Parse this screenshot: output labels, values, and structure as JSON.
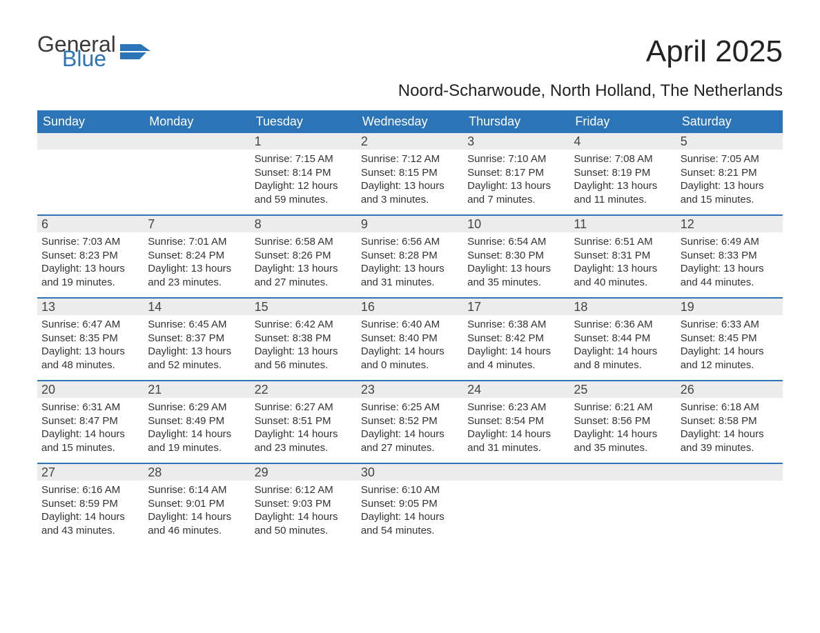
{
  "logo": {
    "line1": "General",
    "line2": "Blue",
    "color1": "#3a3a3a",
    "color2": "#2b74b8",
    "icon_color": "#2b74b8"
  },
  "header": {
    "month_title": "April 2025",
    "location": "Noord-Scharwoude, North Holland, The Netherlands"
  },
  "style": {
    "header_bg": "#2b74b8",
    "header_fg": "#ffffff",
    "daynum_bg": "#ececec",
    "daynum_fg": "#444444",
    "body_fg": "#333333",
    "week_border": "#2b74b8",
    "page_bg": "#ffffff",
    "month_title_fontsize": 44,
    "location_fontsize": 24,
    "weekday_fontsize": 18,
    "body_fontsize": 15
  },
  "weekdays": [
    "Sunday",
    "Monday",
    "Tuesday",
    "Wednesday",
    "Thursday",
    "Friday",
    "Saturday"
  ],
  "weeks": [
    [
      {
        "day": "",
        "sunrise": "",
        "sunset": "",
        "daylight": ""
      },
      {
        "day": "",
        "sunrise": "",
        "sunset": "",
        "daylight": ""
      },
      {
        "day": "1",
        "sunrise": "Sunrise: 7:15 AM",
        "sunset": "Sunset: 8:14 PM",
        "daylight": "Daylight: 12 hours and 59 minutes."
      },
      {
        "day": "2",
        "sunrise": "Sunrise: 7:12 AM",
        "sunset": "Sunset: 8:15 PM",
        "daylight": "Daylight: 13 hours and 3 minutes."
      },
      {
        "day": "3",
        "sunrise": "Sunrise: 7:10 AM",
        "sunset": "Sunset: 8:17 PM",
        "daylight": "Daylight: 13 hours and 7 minutes."
      },
      {
        "day": "4",
        "sunrise": "Sunrise: 7:08 AM",
        "sunset": "Sunset: 8:19 PM",
        "daylight": "Daylight: 13 hours and 11 minutes."
      },
      {
        "day": "5",
        "sunrise": "Sunrise: 7:05 AM",
        "sunset": "Sunset: 8:21 PM",
        "daylight": "Daylight: 13 hours and 15 minutes."
      }
    ],
    [
      {
        "day": "6",
        "sunrise": "Sunrise: 7:03 AM",
        "sunset": "Sunset: 8:23 PM",
        "daylight": "Daylight: 13 hours and 19 minutes."
      },
      {
        "day": "7",
        "sunrise": "Sunrise: 7:01 AM",
        "sunset": "Sunset: 8:24 PM",
        "daylight": "Daylight: 13 hours and 23 minutes."
      },
      {
        "day": "8",
        "sunrise": "Sunrise: 6:58 AM",
        "sunset": "Sunset: 8:26 PM",
        "daylight": "Daylight: 13 hours and 27 minutes."
      },
      {
        "day": "9",
        "sunrise": "Sunrise: 6:56 AM",
        "sunset": "Sunset: 8:28 PM",
        "daylight": "Daylight: 13 hours and 31 minutes."
      },
      {
        "day": "10",
        "sunrise": "Sunrise: 6:54 AM",
        "sunset": "Sunset: 8:30 PM",
        "daylight": "Daylight: 13 hours and 35 minutes."
      },
      {
        "day": "11",
        "sunrise": "Sunrise: 6:51 AM",
        "sunset": "Sunset: 8:31 PM",
        "daylight": "Daylight: 13 hours and 40 minutes."
      },
      {
        "day": "12",
        "sunrise": "Sunrise: 6:49 AM",
        "sunset": "Sunset: 8:33 PM",
        "daylight": "Daylight: 13 hours and 44 minutes."
      }
    ],
    [
      {
        "day": "13",
        "sunrise": "Sunrise: 6:47 AM",
        "sunset": "Sunset: 8:35 PM",
        "daylight": "Daylight: 13 hours and 48 minutes."
      },
      {
        "day": "14",
        "sunrise": "Sunrise: 6:45 AM",
        "sunset": "Sunset: 8:37 PM",
        "daylight": "Daylight: 13 hours and 52 minutes."
      },
      {
        "day": "15",
        "sunrise": "Sunrise: 6:42 AM",
        "sunset": "Sunset: 8:38 PM",
        "daylight": "Daylight: 13 hours and 56 minutes."
      },
      {
        "day": "16",
        "sunrise": "Sunrise: 6:40 AM",
        "sunset": "Sunset: 8:40 PM",
        "daylight": "Daylight: 14 hours and 0 minutes."
      },
      {
        "day": "17",
        "sunrise": "Sunrise: 6:38 AM",
        "sunset": "Sunset: 8:42 PM",
        "daylight": "Daylight: 14 hours and 4 minutes."
      },
      {
        "day": "18",
        "sunrise": "Sunrise: 6:36 AM",
        "sunset": "Sunset: 8:44 PM",
        "daylight": "Daylight: 14 hours and 8 minutes."
      },
      {
        "day": "19",
        "sunrise": "Sunrise: 6:33 AM",
        "sunset": "Sunset: 8:45 PM",
        "daylight": "Daylight: 14 hours and 12 minutes."
      }
    ],
    [
      {
        "day": "20",
        "sunrise": "Sunrise: 6:31 AM",
        "sunset": "Sunset: 8:47 PM",
        "daylight": "Daylight: 14 hours and 15 minutes."
      },
      {
        "day": "21",
        "sunrise": "Sunrise: 6:29 AM",
        "sunset": "Sunset: 8:49 PM",
        "daylight": "Daylight: 14 hours and 19 minutes."
      },
      {
        "day": "22",
        "sunrise": "Sunrise: 6:27 AM",
        "sunset": "Sunset: 8:51 PM",
        "daylight": "Daylight: 14 hours and 23 minutes."
      },
      {
        "day": "23",
        "sunrise": "Sunrise: 6:25 AM",
        "sunset": "Sunset: 8:52 PM",
        "daylight": "Daylight: 14 hours and 27 minutes."
      },
      {
        "day": "24",
        "sunrise": "Sunrise: 6:23 AM",
        "sunset": "Sunset: 8:54 PM",
        "daylight": "Daylight: 14 hours and 31 minutes."
      },
      {
        "day": "25",
        "sunrise": "Sunrise: 6:21 AM",
        "sunset": "Sunset: 8:56 PM",
        "daylight": "Daylight: 14 hours and 35 minutes."
      },
      {
        "day": "26",
        "sunrise": "Sunrise: 6:18 AM",
        "sunset": "Sunset: 8:58 PM",
        "daylight": "Daylight: 14 hours and 39 minutes."
      }
    ],
    [
      {
        "day": "27",
        "sunrise": "Sunrise: 6:16 AM",
        "sunset": "Sunset: 8:59 PM",
        "daylight": "Daylight: 14 hours and 43 minutes."
      },
      {
        "day": "28",
        "sunrise": "Sunrise: 6:14 AM",
        "sunset": "Sunset: 9:01 PM",
        "daylight": "Daylight: 14 hours and 46 minutes."
      },
      {
        "day": "29",
        "sunrise": "Sunrise: 6:12 AM",
        "sunset": "Sunset: 9:03 PM",
        "daylight": "Daylight: 14 hours and 50 minutes."
      },
      {
        "day": "30",
        "sunrise": "Sunrise: 6:10 AM",
        "sunset": "Sunset: 9:05 PM",
        "daylight": "Daylight: 14 hours and 54 minutes."
      },
      {
        "day": "",
        "sunrise": "",
        "sunset": "",
        "daylight": ""
      },
      {
        "day": "",
        "sunrise": "",
        "sunset": "",
        "daylight": ""
      },
      {
        "day": "",
        "sunrise": "",
        "sunset": "",
        "daylight": ""
      }
    ]
  ]
}
